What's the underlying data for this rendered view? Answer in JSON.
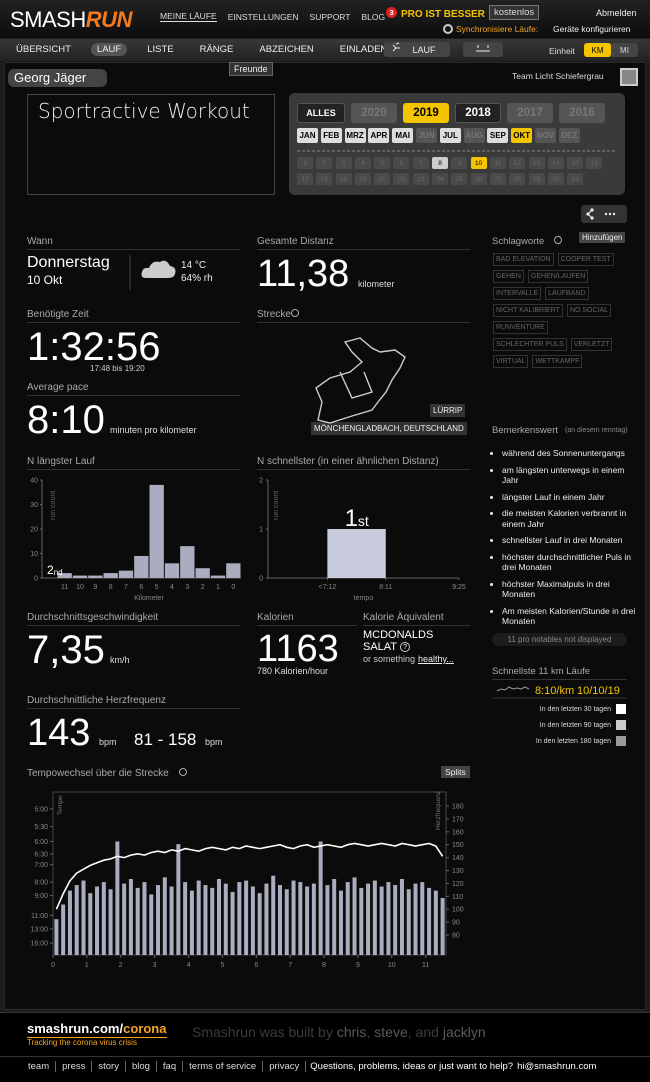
{
  "header": {
    "logo_a": "SMASH",
    "logo_b": "RUN",
    "nav": [
      "MEINE LÄUFE",
      "EINSTELLUNGEN",
      "SUPPORT",
      "BLOG"
    ],
    "blog_badge": "3",
    "pro": "PRO IST BESSER",
    "pro_button": "kostenlos",
    "logout": "Abmelden",
    "sync_label": "Synchronisiere Läufe:",
    "sync_link": "Geräte konfigurieren"
  },
  "subnav": {
    "tabs": [
      "ÜBERSICHT",
      "LAUF",
      "LISTE",
      "RÄNGE",
      "ABZEICHEN",
      "EINLADEN"
    ],
    "active_tab": "LAUF",
    "tooltip": "Freunde",
    "activity": "LAUF",
    "unit_label": "Einheit",
    "units": [
      "KM",
      "MI"
    ],
    "active_unit": "KM"
  },
  "user": {
    "name": "Georg Jäger",
    "team": "Team Licht Schiefergrau"
  },
  "workout_title": "Sportractive Workout",
  "calendar": {
    "years": [
      "ALLES",
      "2020",
      "2019",
      "2018",
      "2017",
      "2016"
    ],
    "disabled_years": [
      "2020",
      "2017",
      "2016"
    ],
    "selected_year": "2019",
    "months": [
      "JAN",
      "FEB",
      "MRZ",
      "APR",
      "MAI",
      "JUN",
      "JUL",
      "AUG",
      "SEP",
      "OKT",
      "NOV",
      "DEZ"
    ],
    "disabled_months": [
      "JUN",
      "AUG",
      "NOV",
      "DEZ"
    ],
    "selected_month": "OKT",
    "days": [
      1,
      2,
      3,
      4,
      5,
      6,
      7,
      8,
      9,
      10,
      11,
      12,
      13,
      14,
      15,
      16,
      17,
      18,
      19,
      20,
      21,
      22,
      23,
      24,
      25,
      26,
      27,
      28,
      29,
      30,
      31
    ],
    "run_days": [
      8,
      10
    ],
    "selected_day": 10
  },
  "tags": {
    "title": "Schlagworte",
    "button": "Hinzufügen",
    "items": [
      "BAD ELEVATION",
      "COOPER TEST",
      "GEHEN",
      "GEHEN/LAUFEN",
      "INTERVALLE",
      "LAUFBAND",
      "NICHT KALIBRIERT",
      "NO SOCIAL",
      "RUNVENTURE",
      "SCHLECHTER PULS",
      "VERLETZT",
      "VIRTUAL",
      "WETTKAMPF"
    ]
  },
  "when": {
    "label": "Wann",
    "weekday": "Donnerstag",
    "date": "10 Okt",
    "temperature": "14 °C",
    "humidity": "64% rh"
  },
  "distance": {
    "label": "Gesamte Distanz",
    "value": "11,38",
    "unit": "kilometer"
  },
  "time": {
    "label": "Benötigte Zeit",
    "value": "1:32:56",
    "range": "17:48 bis 19:20"
  },
  "pace": {
    "label": "Average pace",
    "value": "8:10",
    "unit": "minuten pro kilometer"
  },
  "route": {
    "label": "Strecke",
    "place": "LÜRRIP",
    "location": "MÖNCHENGLADBACH, DEUTSCHLAND"
  },
  "speed": {
    "label": "Durchschnittsgeschwindigkeit",
    "value": "7,35",
    "unit": "km/h"
  },
  "calories": {
    "label": "Kalorien",
    "value": "1163",
    "per_hour": "780 Kalorien/hour"
  },
  "equivalent": {
    "label": "Kalorie Äquivalent",
    "food": "MCDONALDS",
    "food2": "SALAT",
    "help_icon": "?",
    "alt": "or something",
    "alt_link": "healthy..."
  },
  "heart_rate": {
    "label": "Durchschnittliche Herzfrequenz",
    "value": "143",
    "unit": "bpm",
    "range": "81 - 158",
    "range_unit": "bpm"
  },
  "notables": {
    "title": "Bemerkenswert",
    "subtitle": "(an diesem renntag)",
    "items": [
      "während des Sonnenuntergangs",
      "am längsten unterwegs in einem Jahr",
      "längster Lauf in einem Jahr",
      "die meisten Kalorien verbrannt in einem Jahr",
      "schnellster Lauf in drei Monaten",
      "höchster durchschnittlicher Puls in drei Monaten",
      "höchster Maximalpuls in drei Monaten",
      "Am meisten Kalorien/Stunde in drei Monaten"
    ],
    "more": "11 pro notables not displayed"
  },
  "fastest": {
    "title": "Schnellste 11 km Läufe",
    "pace": "8:10/km",
    "date": "10/10/19",
    "legend": [
      {
        "label": "In den letzten 30 tagen",
        "color": "#ffffff"
      },
      {
        "label": "In den letzten 90 tagen",
        "color": "#cccccc"
      },
      {
        "label": "In den letzten 180 tagen",
        "color": "#999999"
      }
    ]
  },
  "chart_data": [
    {
      "type": "bar",
      "title": "N längster Lauf",
      "xlabel": "Kilometer",
      "ylabel": "run count",
      "categories": [
        "11",
        "10",
        "9",
        "8",
        "7",
        "6",
        "5",
        "4",
        "3",
        "2",
        "1",
        "0"
      ],
      "values": [
        2,
        1,
        1,
        2,
        3,
        9,
        38,
        6,
        13,
        4,
        1,
        6
      ],
      "color": "#a9adbf",
      "ylim": [
        0,
        40
      ],
      "yticks": [
        0,
        10,
        20,
        30,
        40
      ],
      "rank": "2",
      "rank_suffix": "nd",
      "rank_index": 0
    },
    {
      "type": "histogram",
      "title": "N schnellster (in einer ähnlichen Distanz)",
      "xlabel": "tempo",
      "ylabel": "run count",
      "bins": [
        7.2,
        8.1833
      ],
      "values": [
        1
      ],
      "color": "#c9ccdd",
      "xlim": [
        6.2,
        9.4167
      ],
      "xticks": [
        {
          "value": 7.2,
          "label": "<7:12"
        },
        {
          "value": 8.1833,
          "label": "8:11"
        },
        {
          "value": 9.4167,
          "label": "9:25"
        }
      ],
      "ylim": [
        0,
        2
      ],
      "yticks": [
        0,
        1,
        2
      ],
      "rank": "1",
      "rank_suffix": "st"
    },
    {
      "type": "combo",
      "title": "Tempowechsel über die Strecke",
      "button": "Splits",
      "ylabel": "Tempo",
      "y2label": "Herzfrequenz",
      "x": [
        0.1,
        0.3,
        0.5,
        0.7,
        0.9,
        1.1,
        1.3,
        1.5,
        1.7,
        1.9,
        2.1,
        2.3,
        2.5,
        2.7,
        2.9,
        3.1,
        3.3,
        3.5,
        3.7,
        3.9,
        4.1,
        4.3,
        4.5,
        4.7,
        4.9,
        5.1,
        5.3,
        5.5,
        5.7,
        5.9,
        6.1,
        6.3,
        6.5,
        6.7,
        6.9,
        7.1,
        7.3,
        7.5,
        7.7,
        7.9,
        8.1,
        8.3,
        8.5,
        8.7,
        8.9,
        9.1,
        9.3,
        9.5,
        9.7,
        9.9,
        10.1,
        10.3,
        10.5,
        10.7,
        10.9,
        11.1,
        11.3,
        11.5
      ],
      "xlim": [
        0,
        11.6
      ],
      "xticks": [
        0,
        1,
        2,
        3,
        4,
        5,
        6,
        7,
        8,
        9,
        10,
        11
      ],
      "ylim": [
        4.6,
        19.9
      ],
      "yscale": "reciprocal",
      "yticks": [
        {
          "value": 5,
          "label": "5:00"
        },
        {
          "value": 5.5,
          "label": "5:30"
        },
        {
          "value": 6,
          "label": "6:00"
        },
        {
          "value": 6.5,
          "label": "6:30"
        },
        {
          "value": 7,
          "label": "7:00"
        },
        {
          "value": 8,
          "label": "8:00"
        },
        {
          "value": 9,
          "label": "9:00"
        },
        {
          "value": 11,
          "label": "11:00"
        },
        {
          "value": 13,
          "label": "13:00"
        },
        {
          "value": 16,
          "label": "16:00"
        }
      ],
      "y2lim": [
        64.5,
        190.9
      ],
      "y2ticks": [
        80,
        90,
        100,
        110,
        120,
        130,
        140,
        150,
        160,
        170,
        180
      ],
      "series": [
        {
          "type": "bar",
          "color": "#a9adbf",
          "values": [
            11.5,
            9.8,
            8.6,
            8.2,
            7.9,
            8.8,
            8.3,
            8.0,
            8.5,
            6.0,
            8.1,
            7.8,
            8.4,
            8.0,
            8.9,
            8.2,
            7.7,
            8.3,
            6.1,
            8.0,
            8.6,
            7.9,
            8.2,
            8.4,
            7.8,
            8.1,
            8.7,
            8.0,
            7.9,
            8.3,
            8.8,
            8.1,
            7.6,
            8.2,
            8.5,
            7.9,
            8.0,
            8.3,
            8.1,
            6.0,
            8.2,
            7.8,
            8.6,
            8.0,
            7.7,
            8.4,
            8.1,
            7.9,
            8.3,
            8.0,
            8.2,
            7.8,
            8.5,
            8.1,
            8.0,
            8.4,
            8.6,
            9.2
          ]
        },
        {
          "type": "line",
          "color": "#ffffff",
          "axis": "y2",
          "values": [
            100,
            112,
            122,
            128,
            131,
            134,
            136,
            138,
            139,
            141,
            140,
            142,
            143,
            142,
            144,
            145,
            144,
            146,
            145,
            147,
            146,
            145,
            147,
            148,
            147,
            146,
            148,
            147,
            149,
            148,
            147,
            148,
            149,
            150,
            148,
            147,
            149,
            150,
            148,
            149,
            150,
            149,
            148,
            150,
            151,
            150,
            149,
            150,
            151,
            150,
            149,
            151,
            150,
            149,
            150,
            151,
            149,
            141
          ]
        }
      ]
    }
  ],
  "footer": {
    "site": "smashrun.com/",
    "site_accent": "corona",
    "tagline": "Tracking the corona virus crisis",
    "built_by": "Smashrun was built by",
    "builders": [
      "chris",
      "steve",
      "jacklyn"
    ],
    "sep": ",",
    "sep_last": ", and",
    "links": [
      "team",
      "press",
      "story",
      "blog",
      "faq",
      "terms of service",
      "privacy"
    ],
    "question": "Questions, problems, ideas or just want to help?",
    "email": "hi@smashrun.com"
  }
}
